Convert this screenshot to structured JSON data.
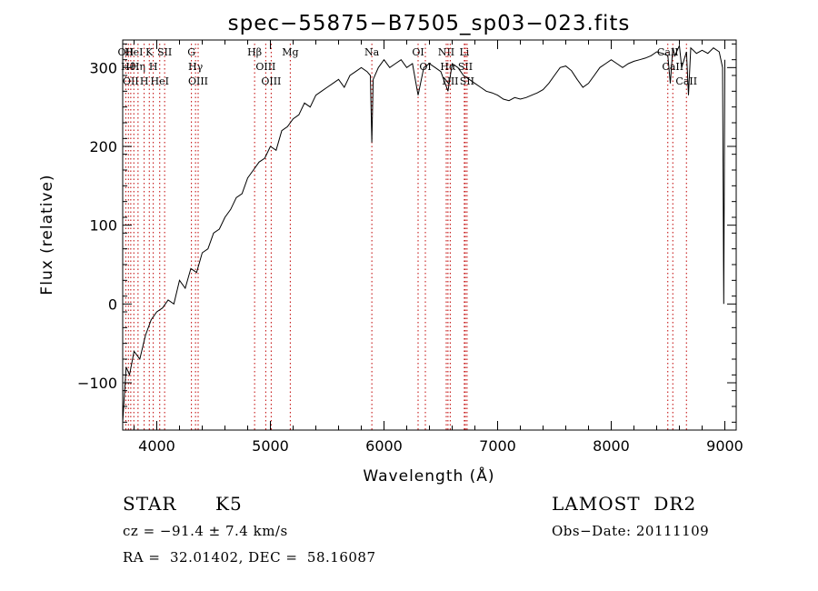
{
  "chart_data": {
    "type": "line",
    "title": "spec−55875−B7505_sp03−023.fits",
    "xlabel": "Wavelength (Å)",
    "ylabel": "Flux (relative)",
    "xlim": [
      3700,
      9100
    ],
    "ylim": [
      -160,
      335
    ],
    "x_ticks": [
      4000,
      5000,
      6000,
      7000,
      8000,
      9000
    ],
    "x_tick_labels": [
      "4000",
      "5000",
      "6000",
      "7000",
      "8000",
      "9000"
    ],
    "y_ticks": [
      -100,
      0,
      100,
      200,
      300
    ],
    "y_tick_labels": [
      "−100",
      "0",
      "100",
      "200",
      "300"
    ],
    "grid": false,
    "line_color": "#000000",
    "marker_color": "#c00000",
    "series": [
      {
        "x": [
          3700,
          3730,
          3760,
          3800,
          3850,
          3900,
          3950,
          4000,
          4050,
          4100,
          4150,
          4200,
          4250,
          4300,
          4350,
          4400,
          4450,
          4500,
          4550,
          4600,
          4650,
          4700,
          4750,
          4800,
          4850,
          4900,
          4950,
          5000,
          5050,
          5100,
          5150,
          5200,
          5250,
          5300,
          5350,
          5400,
          5450,
          5500,
          5550,
          5600,
          5650,
          5700,
          5750,
          5800,
          5850,
          5880,
          5893,
          5905,
          5950,
          6000,
          6050,
          6100,
          6150,
          6200,
          6250,
          6300,
          6350,
          6400,
          6450,
          6500,
          6563,
          6600,
          6650,
          6700,
          6750,
          6800,
          6850,
          6900,
          6950,
          7000,
          7050,
          7100,
          7150,
          7200,
          7250,
          7300,
          7350,
          7400,
          7450,
          7500,
          7550,
          7600,
          7650,
          7700,
          7750,
          7800,
          7850,
          7900,
          7950,
          8000,
          8050,
          8100,
          8150,
          8200,
          8250,
          8300,
          8350,
          8400,
          8450,
          8498,
          8520,
          8542,
          8560,
          8600,
          8620,
          8662,
          8680,
          8700,
          8750,
          8800,
          8850,
          8900,
          8950,
          8980,
          8990,
          9000
        ],
        "y": [
          -150,
          -80,
          -90,
          -60,
          -70,
          -40,
          -20,
          -10,
          -5,
          5,
          0,
          30,
          20,
          45,
          40,
          65,
          70,
          90,
          95,
          110,
          120,
          135,
          140,
          160,
          170,
          180,
          185,
          200,
          195,
          220,
          225,
          235,
          240,
          255,
          250,
          265,
          270,
          275,
          280,
          285,
          275,
          290,
          295,
          300,
          295,
          290,
          205,
          285,
          300,
          310,
          300,
          305,
          310,
          300,
          305,
          265,
          300,
          305,
          300,
          295,
          270,
          305,
          300,
          290,
          285,
          280,
          275,
          270,
          268,
          265,
          260,
          258,
          262,
          260,
          262,
          265,
          268,
          272,
          280,
          290,
          300,
          302,
          296,
          285,
          275,
          280,
          290,
          300,
          305,
          310,
          305,
          300,
          305,
          308,
          310,
          312,
          315,
          320,
          318,
          315,
          280,
          325,
          315,
          328,
          300,
          320,
          265,
          325,
          318,
          322,
          318,
          325,
          320,
          300,
          0,
          310
        ]
      }
    ],
    "line_markers": [
      {
        "x": 3727,
        "label": "OII"
      },
      {
        "x": 3750,
        "label": "Hθ"
      },
      {
        "x": 3771,
        "label": "OII"
      },
      {
        "x": 3798,
        "label": "HeI"
      },
      {
        "x": 3835,
        "label": "Hη"
      },
      {
        "x": 3889,
        "label": "H"
      },
      {
        "x": 3934,
        "label": "K"
      },
      {
        "x": 3969,
        "label": "H"
      },
      {
        "x": 4026,
        "label": "HeI"
      },
      {
        "x": 4069,
        "label": "SII"
      },
      {
        "x": 4305,
        "label": "G"
      },
      {
        "x": 4341,
        "label": "Hγ"
      },
      {
        "x": 4364,
        "label": "OIII"
      },
      {
        "x": 4861,
        "label": "Hβ"
      },
      {
        "x": 4959,
        "label": "OIII"
      },
      {
        "x": 5007,
        "label": "OIII"
      },
      {
        "x": 5175,
        "label": "Mg"
      },
      {
        "x": 5893,
        "label": "Na"
      },
      {
        "x": 6300,
        "label": "OI"
      },
      {
        "x": 6364,
        "label": "OI"
      },
      {
        "x": 6548,
        "label": "NII"
      },
      {
        "x": 6563,
        "label": "Hα"
      },
      {
        "x": 6583,
        "label": "NII"
      },
      {
        "x": 6707,
        "label": "Li"
      },
      {
        "x": 6716,
        "label": "SII"
      },
      {
        "x": 6731,
        "label": "SII"
      },
      {
        "x": 8498,
        "label": "CaII"
      },
      {
        "x": 8542,
        "label": "CaII"
      },
      {
        "x": 8662,
        "label": "CaII"
      }
    ]
  },
  "info": {
    "object_class": "STAR",
    "subclass": "K5",
    "survey": "LAMOST  DR2",
    "redshift_text": "cz = −91.4 ± 7.4 km/s",
    "obs_date_text": "Obs−Date: 20111109",
    "coords_text": "RA =  32.01402, DEC =  58.16087"
  }
}
